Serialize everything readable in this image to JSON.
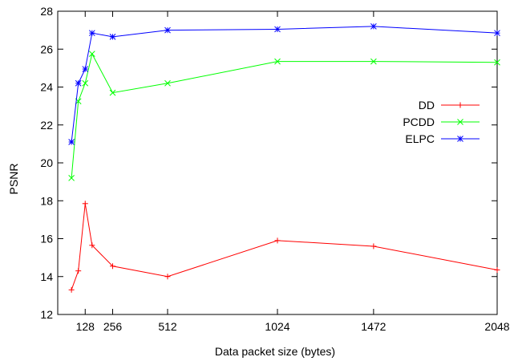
{
  "chart_data": {
    "type": "line",
    "title": "",
    "xlabel": "Data packet size (bytes)",
    "ylabel": "PSNR",
    "xlim": [
      0,
      2048
    ],
    "ylim": [
      12,
      28
    ],
    "xticks": [
      128,
      256,
      512,
      1024,
      1472,
      2048
    ],
    "xtick_labels": [
      "128",
      "256",
      "512",
      "1024",
      "1472",
      "2048"
    ],
    "yticks": [
      12,
      14,
      16,
      18,
      20,
      22,
      24,
      26,
      28
    ],
    "ytick_labels": [
      "12",
      "14",
      "16",
      "18",
      "20",
      "22",
      "24",
      "26",
      "28"
    ],
    "grid": false,
    "legend_position": "right",
    "series": [
      {
        "name": "DD",
        "color": "#ff0000",
        "marker": "plus",
        "x": [
          64,
          96,
          128,
          160,
          256,
          512,
          1024,
          1472,
          2048
        ],
        "y": [
          13.3,
          14.3,
          17.85,
          15.65,
          14.55,
          14.0,
          15.9,
          15.6,
          14.35
        ]
      },
      {
        "name": "PCDD",
        "color": "#00ff00",
        "marker": "cross",
        "x": [
          64,
          96,
          128,
          160,
          256,
          512,
          1024,
          1472,
          2048
        ],
        "y": [
          19.2,
          23.25,
          24.2,
          25.75,
          23.7,
          24.2,
          25.35,
          25.35,
          25.3
        ]
      },
      {
        "name": "ELPC",
        "color": "#0000ff",
        "marker": "star",
        "x": [
          64,
          96,
          128,
          160,
          256,
          512,
          1024,
          1472,
          2048
        ],
        "y": [
          21.1,
          24.2,
          24.95,
          26.85,
          26.65,
          27.0,
          27.05,
          27.2,
          26.85
        ]
      }
    ]
  }
}
